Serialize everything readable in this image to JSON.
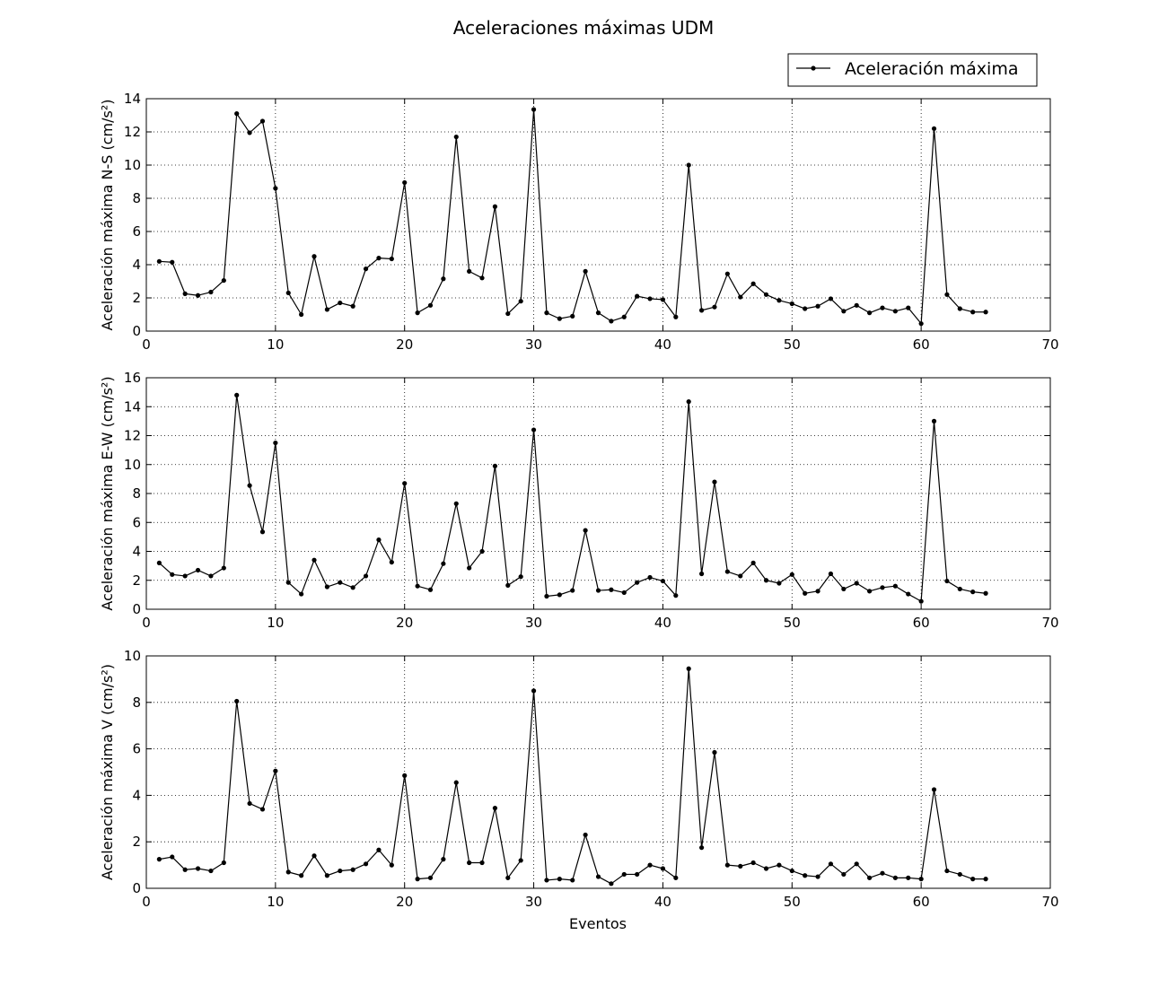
{
  "figure": {
    "title": "Aceleraciones máximas UDM",
    "legend_label": "Aceleración máxima",
    "legend_position": "top-right",
    "xlabel": "Eventos"
  },
  "chart_data": [
    {
      "type": "line",
      "ylabel": "Aceleración máxima N-S (cm/s²)",
      "xlim": [
        0,
        70
      ],
      "ylim": [
        0,
        14
      ],
      "xticks": [
        0,
        10,
        20,
        30,
        40,
        50,
        60,
        70
      ],
      "yticks": [
        0,
        2,
        4,
        6,
        8,
        10,
        12,
        14
      ],
      "grid": true,
      "color": "#000000",
      "marker": "dot",
      "series": [
        {
          "name": "Aceleración máxima",
          "x": [
            1,
            2,
            3,
            4,
            5,
            6,
            7,
            8,
            9,
            10,
            11,
            12,
            13,
            14,
            15,
            16,
            17,
            18,
            19,
            20,
            21,
            22,
            23,
            24,
            25,
            26,
            27,
            28,
            29,
            30,
            31,
            32,
            33,
            34,
            35,
            36,
            37,
            38,
            39,
            40,
            41,
            42,
            43,
            44,
            45,
            46,
            47,
            48,
            49,
            50,
            51,
            52,
            53,
            54,
            55,
            56,
            57,
            58,
            59,
            60,
            61,
            62,
            63,
            64,
            65
          ],
          "y": [
            4.2,
            4.15,
            2.25,
            2.15,
            2.35,
            3.05,
            13.1,
            11.95,
            12.65,
            8.6,
            2.3,
            1.0,
            4.5,
            1.3,
            1.7,
            1.5,
            3.75,
            4.4,
            4.35,
            8.95,
            1.1,
            1.55,
            3.15,
            11.7,
            3.6,
            3.2,
            7.5,
            1.05,
            1.8,
            13.35,
            1.1,
            0.75,
            0.9,
            3.6,
            1.1,
            0.6,
            0.85,
            2.1,
            1.95,
            1.9,
            0.85,
            10.0,
            1.25,
            1.45,
            3.45,
            2.05,
            2.85,
            2.2,
            1.85,
            1.65,
            1.35,
            1.5,
            1.95,
            1.2,
            1.55,
            1.1,
            1.4,
            1.2,
            1.4,
            0.45,
            12.2,
            2.2,
            1.35,
            1.15,
            1.15
          ]
        }
      ]
    },
    {
      "type": "line",
      "ylabel": "Aceleración máxima E-W (cm/s²)",
      "xlim": [
        0,
        70
      ],
      "ylim": [
        0,
        16
      ],
      "xticks": [
        0,
        10,
        20,
        30,
        40,
        50,
        60,
        70
      ],
      "yticks": [
        0,
        2,
        4,
        6,
        8,
        10,
        12,
        14,
        16
      ],
      "grid": true,
      "color": "#000000",
      "marker": "dot",
      "series": [
        {
          "name": "Aceleración máxima",
          "x": [
            1,
            2,
            3,
            4,
            5,
            6,
            7,
            8,
            9,
            10,
            11,
            12,
            13,
            14,
            15,
            16,
            17,
            18,
            19,
            20,
            21,
            22,
            23,
            24,
            25,
            26,
            27,
            28,
            29,
            30,
            31,
            32,
            33,
            34,
            35,
            36,
            37,
            38,
            39,
            40,
            41,
            42,
            43,
            44,
            45,
            46,
            47,
            48,
            49,
            50,
            51,
            52,
            53,
            54,
            55,
            56,
            57,
            58,
            59,
            60,
            61,
            62,
            63,
            64,
            65
          ],
          "y": [
            3.2,
            2.4,
            2.3,
            2.7,
            2.3,
            2.85,
            14.8,
            8.55,
            5.35,
            11.5,
            1.85,
            1.05,
            3.4,
            1.55,
            1.85,
            1.5,
            2.3,
            4.8,
            3.25,
            8.7,
            1.6,
            1.35,
            3.15,
            7.3,
            2.85,
            4.0,
            9.9,
            1.65,
            2.25,
            12.4,
            0.9,
            1.0,
            1.3,
            5.45,
            1.3,
            1.35,
            1.15,
            1.85,
            2.2,
            1.95,
            0.95,
            14.35,
            2.45,
            8.8,
            2.6,
            2.3,
            3.2,
            2.0,
            1.8,
            2.4,
            1.1,
            1.25,
            2.45,
            1.4,
            1.8,
            1.25,
            1.5,
            1.6,
            1.05,
            0.55,
            13.0,
            1.95,
            1.4,
            1.2,
            1.1
          ]
        }
      ]
    },
    {
      "type": "line",
      "ylabel": "Aceleración máxima V (cm/s²)",
      "xlabel": "Eventos",
      "xlim": [
        0,
        70
      ],
      "ylim": [
        0,
        10
      ],
      "xticks": [
        0,
        10,
        20,
        30,
        40,
        50,
        60,
        70
      ],
      "yticks": [
        0,
        2,
        4,
        6,
        8,
        10
      ],
      "grid": true,
      "color": "#000000",
      "marker": "dot",
      "series": [
        {
          "name": "Aceleración máxima",
          "x": [
            1,
            2,
            3,
            4,
            5,
            6,
            7,
            8,
            9,
            10,
            11,
            12,
            13,
            14,
            15,
            16,
            17,
            18,
            19,
            20,
            21,
            22,
            23,
            24,
            25,
            26,
            27,
            28,
            29,
            30,
            31,
            32,
            33,
            34,
            35,
            36,
            37,
            38,
            39,
            40,
            41,
            42,
            43,
            44,
            45,
            46,
            47,
            48,
            49,
            50,
            51,
            52,
            53,
            54,
            55,
            56,
            57,
            58,
            59,
            60,
            61,
            62,
            63,
            64,
            65
          ],
          "y": [
            1.25,
            1.35,
            0.8,
            0.85,
            0.75,
            1.1,
            8.05,
            3.65,
            3.4,
            5.05,
            0.7,
            0.55,
            1.4,
            0.55,
            0.75,
            0.8,
            1.05,
            1.65,
            1.0,
            4.85,
            0.4,
            0.45,
            1.25,
            4.55,
            1.1,
            1.1,
            3.45,
            0.45,
            1.2,
            8.5,
            0.35,
            0.4,
            0.35,
            2.3,
            0.5,
            0.2,
            0.6,
            0.6,
            1.0,
            0.85,
            0.45,
            9.45,
            1.75,
            5.85,
            1.0,
            0.95,
            1.1,
            0.85,
            1.0,
            0.75,
            0.55,
            0.5,
            1.05,
            0.6,
            1.05,
            0.45,
            0.65,
            0.45,
            0.45,
            0.4,
            4.25,
            0.75,
            0.6,
            0.4,
            0.4
          ]
        }
      ]
    }
  ]
}
